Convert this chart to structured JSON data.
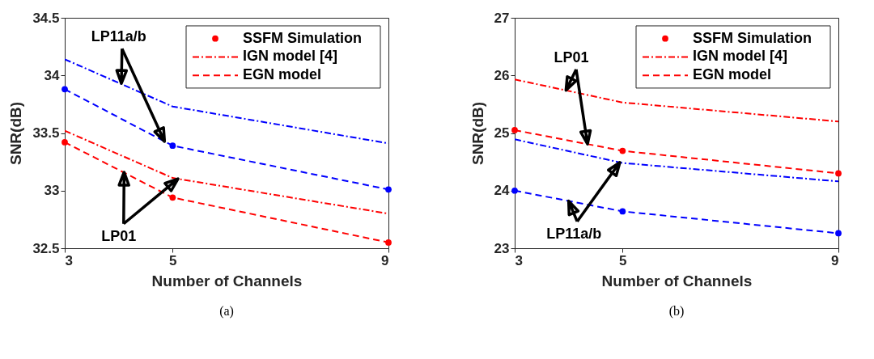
{
  "chart_data": [
    {
      "type": "line",
      "xlabel": "Number of Channels",
      "ylabel": "SNR(dB)",
      "x": [
        3,
        5,
        9
      ],
      "xlim": [
        3,
        9
      ],
      "xticks": [
        3,
        5,
        9
      ],
      "ylim": [
        32.5,
        34.5
      ],
      "yticks": [
        32.5,
        33,
        33.5,
        34,
        34.5
      ],
      "grid": false,
      "legend": "top right",
      "series": [
        {
          "name": "SSFM Simulation",
          "type": "scatter",
          "marker": "circle",
          "color": "#ff0000",
          "values": [
            33.42,
            32.94,
            32.55
          ]
        },
        {
          "name": "IGN model [4]",
          "type": "line",
          "line_style": "dotted",
          "color": "#ff0000",
          "values": [
            33.52,
            33.11,
            32.8
          ]
        },
        {
          "name": "EGN model",
          "type": "line",
          "line_style": "dashed",
          "color": "#ff0000",
          "values": [
            33.42,
            32.94,
            32.55
          ]
        },
        {
          "type": "scatter",
          "marker": "circle",
          "color": "#0000ff",
          "values": [
            33.88,
            33.39,
            33.01
          ]
        },
        {
          "type": "line",
          "line_style": "dotted",
          "color": "#0000ff",
          "values": [
            34.14,
            33.73,
            33.41
          ]
        },
        {
          "type": "line",
          "line_style": "dashed",
          "color": "#0000ff",
          "values": [
            33.88,
            33.39,
            33.01
          ]
        }
      ],
      "annotations": [
        {
          "text": "LP11a/b",
          "x": 4.05,
          "y": 33.93
        },
        {
          "text": "LP01",
          "x": 4.1,
          "y": 33.16
        },
        "(a)"
      ]
    },
    {
      "type": "line",
      "xlabel": "Number of Channels",
      "ylabel": "SNR(dB)",
      "x": [
        3,
        5,
        9
      ],
      "xlim": [
        3,
        9
      ],
      "xticks": [
        3,
        5,
        9
      ],
      "ylim": [
        23,
        27
      ],
      "yticks": [
        23,
        24,
        25,
        26,
        27
      ],
      "grid": false,
      "legend": "top right",
      "series": [
        {
          "name": "SSFM Simulation",
          "type": "scatter",
          "marker": "circle",
          "color": "#ff0000",
          "values": [
            25.05,
            24.69,
            24.3
          ]
        },
        {
          "name": "IGN model [4]",
          "type": "line",
          "line_style": "dotted",
          "color": "#ff0000",
          "values": [
            25.93,
            25.53,
            25.2
          ]
        },
        {
          "name": "EGN model",
          "type": "line",
          "line_style": "dashed",
          "color": "#ff0000",
          "values": [
            25.05,
            24.69,
            24.3
          ]
        },
        {
          "type": "scatter",
          "marker": "circle",
          "color": "#0000ff",
          "values": [
            24.0,
            23.64,
            23.26
          ]
        },
        {
          "type": "line",
          "line_style": "dotted",
          "color": "#0000ff",
          "values": [
            24.89,
            24.48,
            24.16
          ]
        },
        {
          "type": "line",
          "line_style": "dashed",
          "color": "#0000ff",
          "values": [
            24.0,
            23.64,
            23.26
          ]
        }
      ],
      "annotations": [
        {
          "text": "LP01",
          "x": 3.95,
          "y": 25.74
        },
        {
          "text": "LP11a/b",
          "x": 4,
          "y": 23.82
        },
        "(b)"
      ]
    }
  ]
}
